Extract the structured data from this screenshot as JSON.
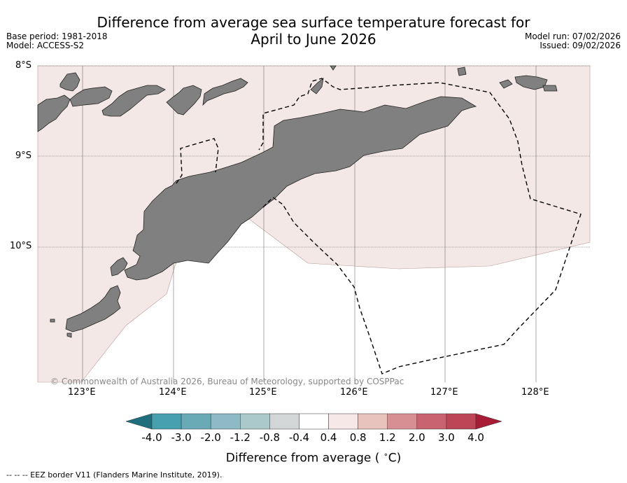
{
  "title_line1": "Difference from average sea surface temperature forecast for",
  "title_line2": "April to June 2026",
  "base_period": "Base period: 1981-2018",
  "model": "Model: ACCESS-S2",
  "model_run": "Model run: 07/02/2026",
  "issued": "Issued: 09/02/2026",
  "lat_labels": [
    "8°S",
    "9°S",
    "10°S"
  ],
  "lon_labels": [
    "123°E",
    "124°E",
    "125°E",
    "126°E",
    "127°E",
    "128°E"
  ],
  "copyright": "© Commonwealth of Australia 2026, Bureau of Meteorology, supported by COSPPac",
  "colorbar": {
    "ticks": [
      "-4.0",
      "-3.0",
      "-2.0",
      "-1.2",
      "-0.8",
      "-0.4",
      "0.4",
      "0.8",
      "1.2",
      "2.0",
      "3.0",
      "4.0"
    ],
    "colors": [
      "#1f6e7e",
      "#47a0ad",
      "#6aaab6",
      "#8dbac4",
      "#abc9cb",
      "#d3d6d7",
      "#ffffff",
      "#f5e8e6",
      "#e8c3bd",
      "#d88f94",
      "#c8646f",
      "#bc4656",
      "#a81c36"
    ],
    "label": "Difference from average (°C)",
    "label_text": "Difference from average ( ",
    "label_deg": "∘",
    "label_unit": "C)"
  },
  "footer": "-- -- -- EEZ border V11 (Flanders Marine Institute, 2019).",
  "map": {
    "ocean_anomaly_color": "#f4e8e6",
    "land_color": "#808080",
    "anomaly_range_c": [
      0.4,
      0.8
    ]
  }
}
